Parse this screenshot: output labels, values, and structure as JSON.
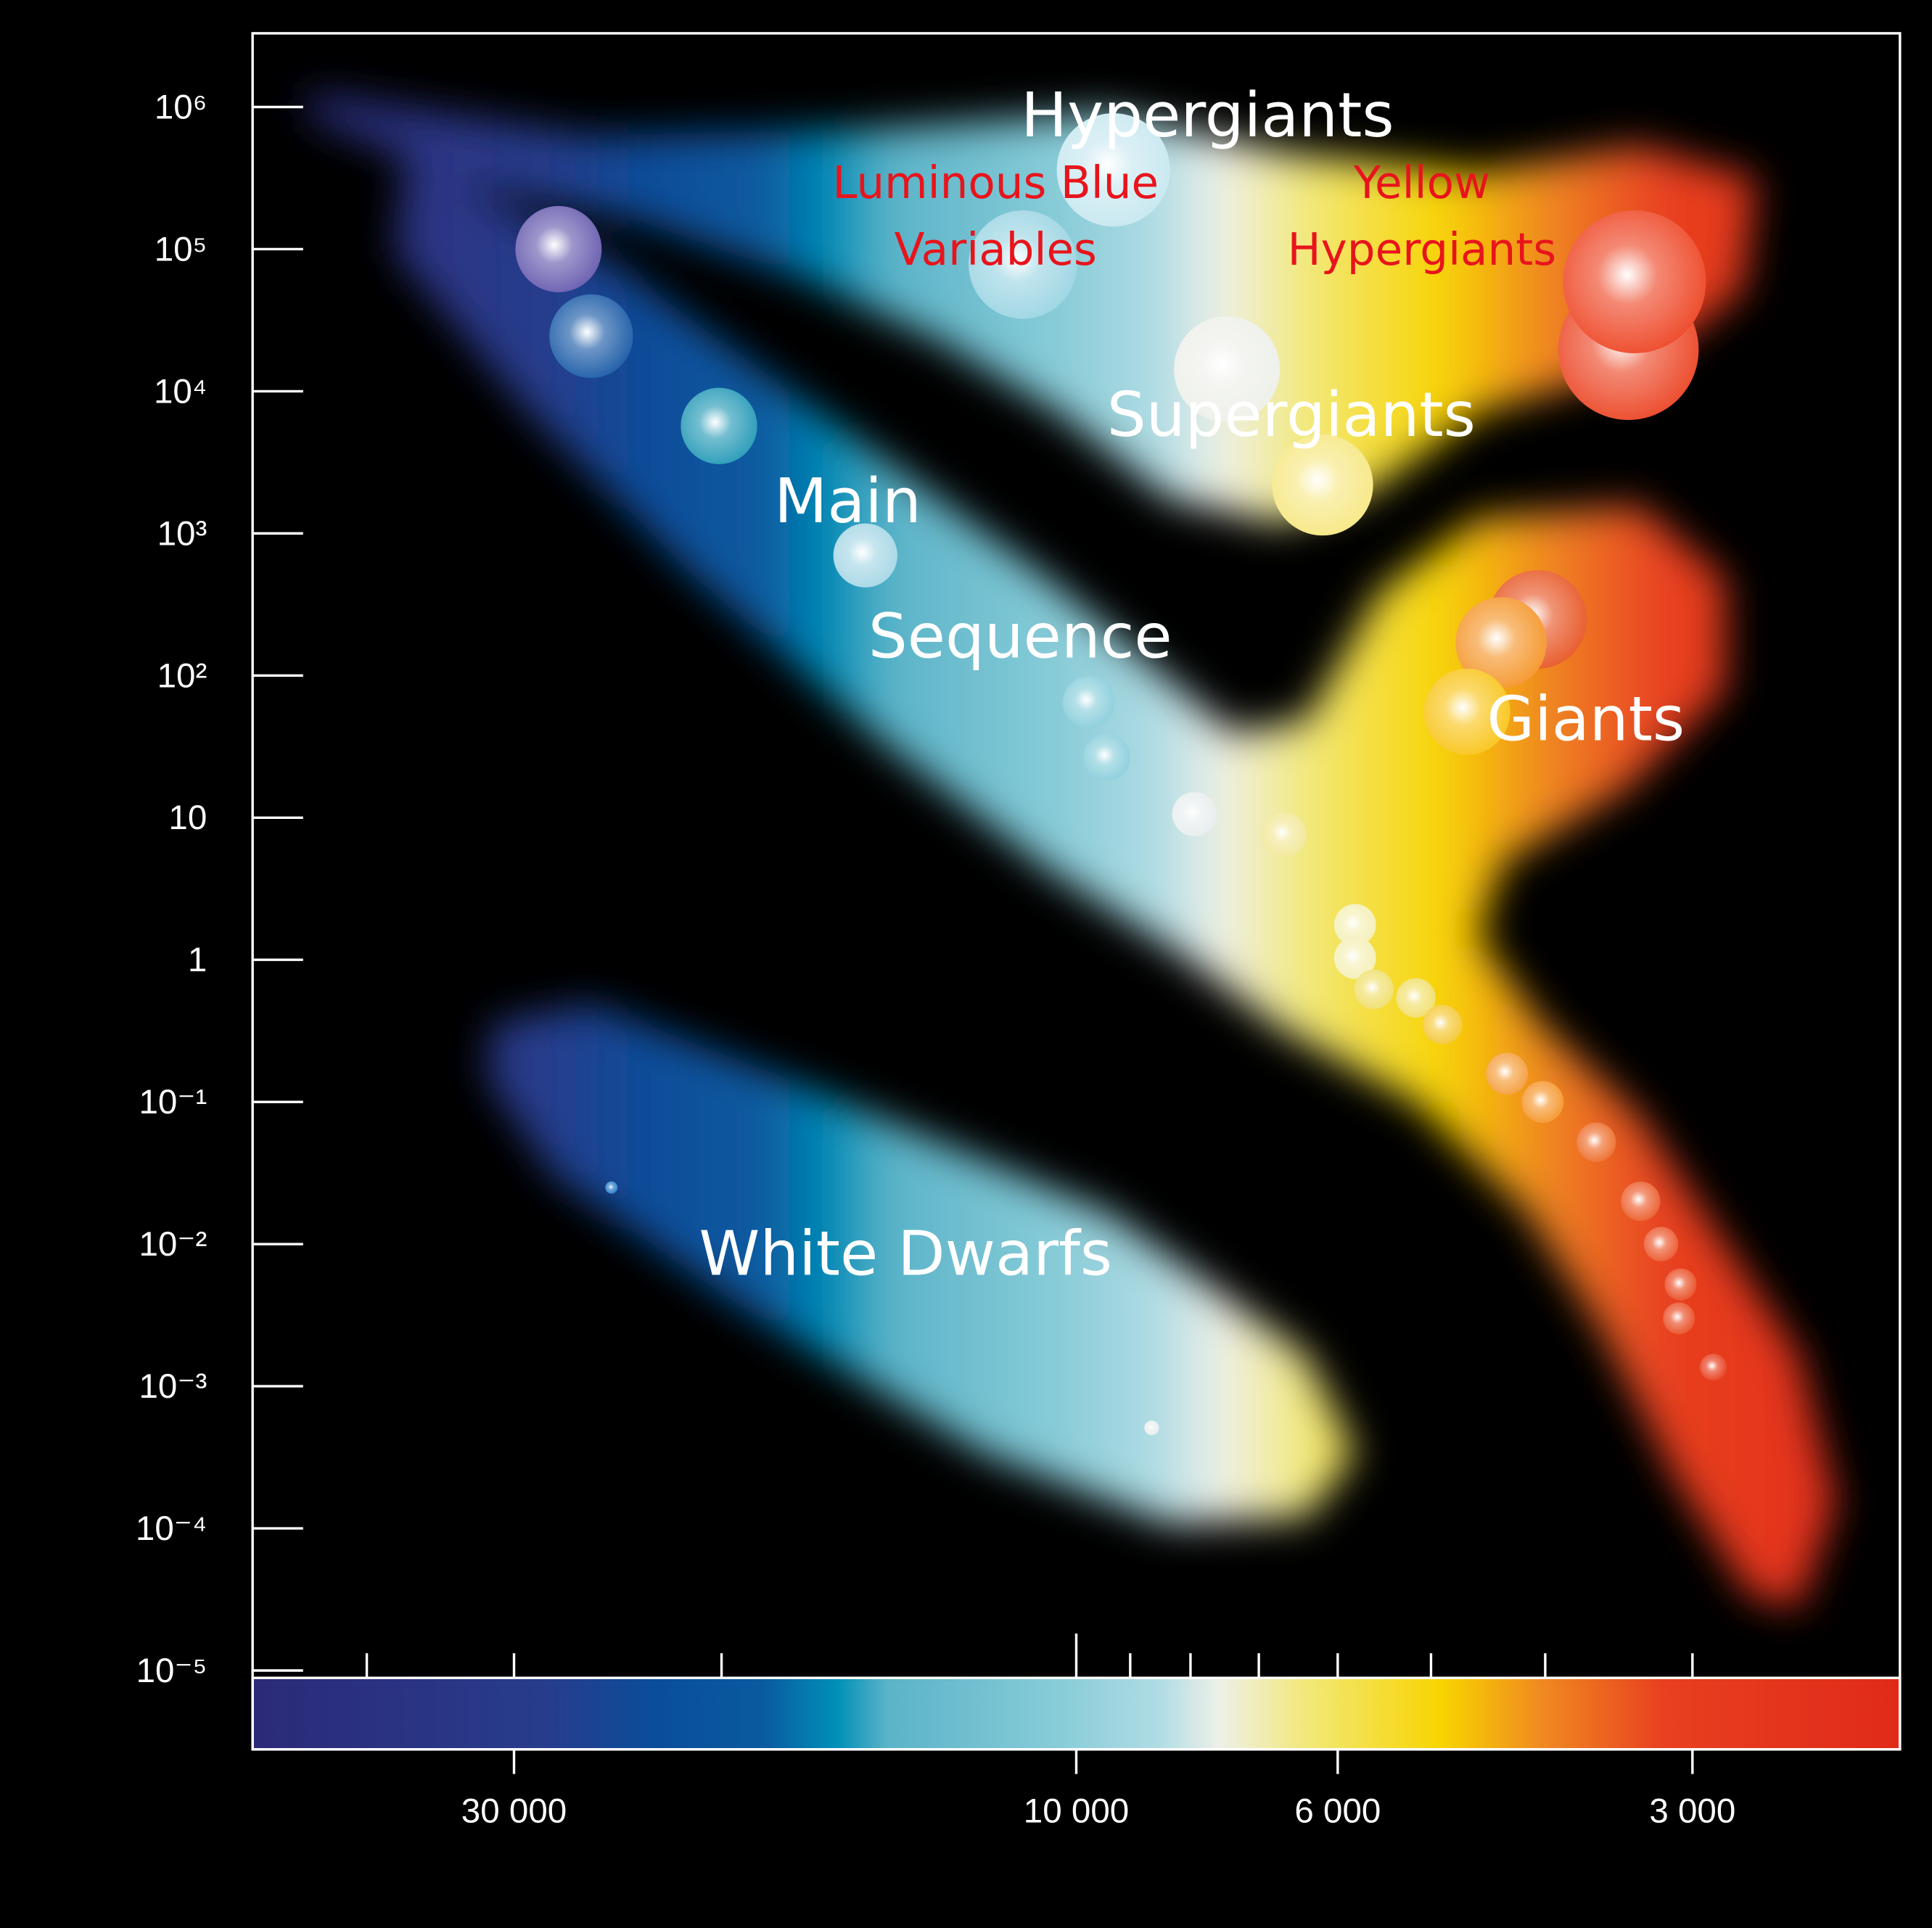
{
  "chart_data": {
    "type": "scatter",
    "xscale": "log",
    "yscale": "log",
    "xlim": [
      50000,
      2000
    ],
    "ylim": [
      1e-05,
      3300000
    ],
    "xticks": [
      {
        "value": 30000,
        "label": "30 000"
      },
      {
        "value": 10000,
        "label": "10 000"
      },
      {
        "value": 6000,
        "label": "6 000"
      },
      {
        "value": 3000,
        "label": "3 000"
      }
    ],
    "xminorticks": [
      40000,
      20000,
      9000,
      8000,
      7000,
      5000,
      4000
    ],
    "yticks": [
      {
        "value": 1000000,
        "label": "10⁶"
      },
      {
        "value": 100000,
        "label": "10⁵"
      },
      {
        "value": 10000,
        "label": "10⁴"
      },
      {
        "value": 1000,
        "label": "10³"
      },
      {
        "value": 100,
        "label": "10²"
      },
      10,
      1,
      {
        "value": 0.1,
        "label": "10⁻¹"
      },
      {
        "value": 0.01,
        "label": "10⁻²"
      },
      {
        "value": 0.001,
        "label": "10⁻³"
      },
      {
        "value": 0.0001,
        "label": "10⁻⁴"
      },
      {
        "value": 1e-05,
        "label": "10⁻⁵"
      }
    ],
    "annotations": [
      {
        "text": "Hypergiants",
        "color": "#ffffff"
      },
      {
        "text": "Luminous Blue",
        "color": "#e8141c"
      },
      {
        "text": "Variables",
        "color": "#e8141c"
      },
      {
        "text": "Yellow",
        "color": "#e8141c"
      },
      {
        "text": "Hypergiants",
        "color": "#e8141c"
      },
      {
        "text": "Supergiants",
        "color": "#ffffff"
      },
      {
        "text": "Main",
        "color": "#ffffff"
      },
      {
        "text": "Sequence",
        "color": "#ffffff"
      },
      {
        "text": "Giants",
        "color": "#ffffff"
      },
      {
        "text": "White Dwarfs",
        "color": "#ffffff"
      }
    ],
    "x": [
      27500,
      25800,
      20100,
      15100,
      9760,
      9420,
      7940,
      6660,
      5800,
      5800,
      5590,
      5150,
      4890,
      4310,
      4020,
      3620,
      3320,
      3190,
      3070,
      3080,
      2880,
      24800,
      8630,
      9300,
      11100,
      7450,
      6180,
      3400,
      3360,
      4060,
      4360,
      4660
    ],
    "values": [
      100000,
      24400,
      5700,
      700,
      65,
      26.6,
      10.6,
      7.6,
      1.76,
      1.03,
      0.62,
      0.54,
      0.35,
      0.158,
      0.1,
      0.052,
      0.02,
      0.01,
      0.0052,
      0.003,
      0.00136,
      0.025,
      0.00051,
      361000,
      77800,
      14300,
      2190,
      19600,
      58900,
      248,
      170,
      55.6
    ],
    "sizes": [
      35,
      34,
      31,
      26,
      21,
      19,
      18,
      18,
      17,
      17,
      16,
      16,
      16,
      17,
      17,
      16,
      16,
      14,
      13,
      13,
      11,
      5,
      6,
      46,
      44,
      43,
      41,
      57,
      58,
      40,
      37,
      35
    ],
    "colors": [
      "#6a5fb0",
      "#1f5ea8",
      "#2a9cb8",
      "#a8d8e6",
      "#8ccfdc",
      "#8ccfdc",
      "#e8eeee",
      "#f2e89a",
      "#f5f0b8",
      "#f5f0b8",
      "#f0e070",
      "#f2e070",
      "#f5c93a",
      "#f5a040",
      "#f59830",
      "#ee7030",
      "#ec6030",
      "#ec5a30",
      "#ea5028",
      "#ea5028",
      "#e84020",
      "#2a7cc8",
      "#e8eeee",
      "#c8e8f0",
      "#9ed6e4",
      "#eef0ea",
      "#f7e886",
      "#ec4a2a",
      "#ee4a2a",
      "#e85a2a",
      "#f5982f",
      "#f9c620"
    ]
  }
}
